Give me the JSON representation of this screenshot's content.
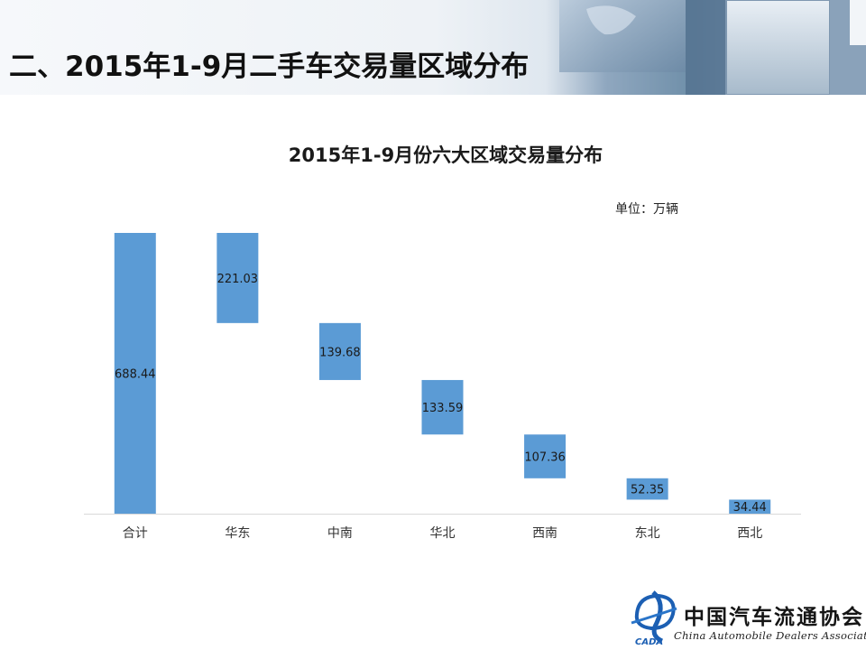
{
  "slide": {
    "title": "二、2015年1-9月二手车交易量区域分布"
  },
  "chart_data": {
    "type": "bar",
    "subtype": "waterfall",
    "title": "2015年1-9月份六大区域交易量分布",
    "unit_label": "单位：万辆",
    "categories": [
      "合计",
      "华东",
      "中南",
      "华北",
      "西南",
      "东北",
      "西北"
    ],
    "values": [
      688.44,
      221.03,
      139.68,
      133.59,
      107.36,
      52.35,
      34.44
    ],
    "value_labels": [
      "688.44",
      "221.03",
      "139.68",
      "133.59",
      "107.36",
      "52.35",
      "34.44"
    ],
    "total_index": 0,
    "ylim": [
      0,
      688.44
    ],
    "grid": false,
    "legend": "none",
    "bar_color": "#5b9bd5"
  },
  "logo": {
    "name_cn": "中国汽车流通协会",
    "name_en": "China Automobile Dealers Association",
    "mark_text": "CADA"
  }
}
